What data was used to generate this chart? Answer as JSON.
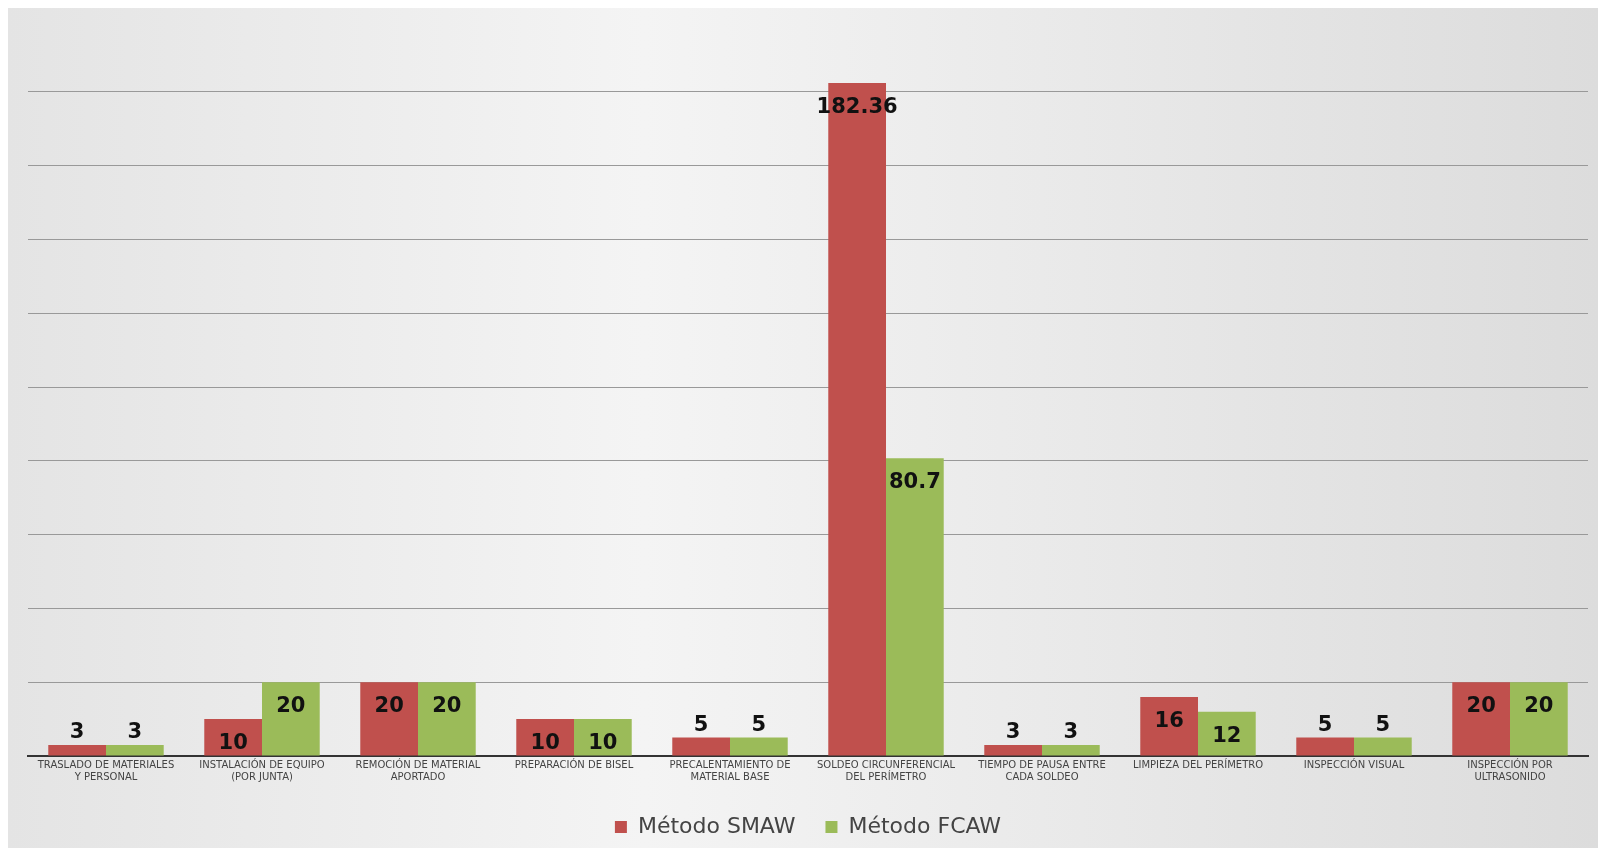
{
  "chart_data": {
    "type": "bar",
    "categories": [
      "TRASLADO DE MATERIALES Y PERSONAL",
      "INSTALACIÓN DE EQUIPO (POR JUNTA)",
      "REMOCIÓN DE MATERIAL APORTADO",
      "PREPARACIÓN DE BISEL",
      "PRECALENTAMIENTO DE MATERIAL BASE",
      "SOLDEO CIRCUNFERENCIAL DEL PERÍMETRO",
      "TIEMPO DE PAUSA ENTRE CADA SOLDEO",
      "LIMPIEZA DEL PERÍMETRO",
      "INSPECCIÓN VISUAL",
      "INSPECCIÓN POR ULTRASONIDO"
    ],
    "series": [
      {
        "name": "Método SMAW",
        "color": "#c0504d",
        "values": [
          3,
          10,
          20,
          10,
          5,
          182.36,
          3,
          16,
          5,
          20
        ]
      },
      {
        "name": "Método FCAW",
        "color": "#9bbb59",
        "values": [
          3,
          20,
          20,
          10,
          5,
          80.7,
          3,
          12,
          5,
          20
        ]
      }
    ],
    "yticks": [
      {
        "value": 0,
        "label": null
      },
      {
        "value": 20,
        "label": null
      },
      {
        "value": 40,
        "label": null
      },
      {
        "value": 60,
        "label": null
      },
      {
        "value": 80,
        "label": null
      },
      {
        "value": 100,
        "label": null
      },
      {
        "value": 120,
        "label": null
      },
      {
        "value": 140,
        "label": null
      },
      {
        "value": 160,
        "label": null
      },
      {
        "value": 180,
        "label": null
      }
    ],
    "grid": "y",
    "tick_labels": "x",
    "legend": "bottom",
    "data_labels": true
  }
}
